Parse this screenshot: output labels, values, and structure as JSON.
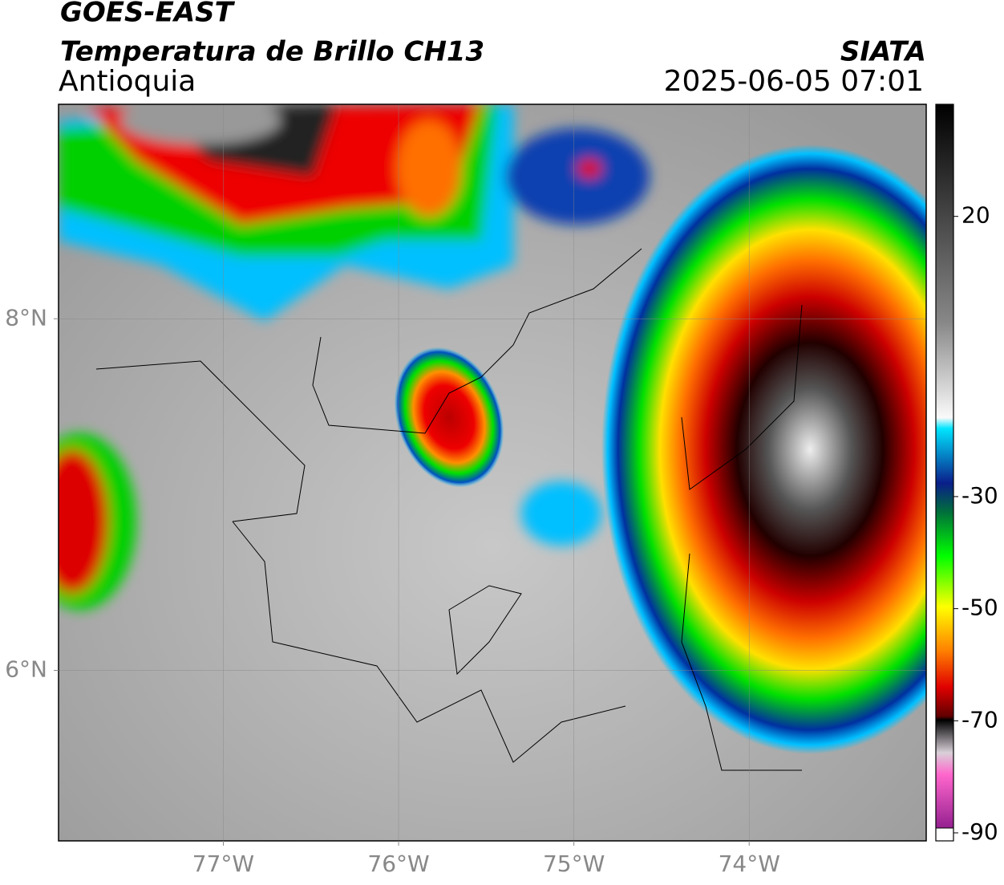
{
  "header": {
    "title": "GOES-EAST",
    "subtitle": "Temperatura de Brillo CH13",
    "region": "Antioquia",
    "source": "SIATA",
    "datetime": "2025-06-05 07:01"
  },
  "map": {
    "xlim": [
      -77.94,
      -72.99
    ],
    "ylim": [
      5.03,
      9.22
    ],
    "xticks": [
      {
        "value": -77,
        "label": "77°W"
      },
      {
        "value": -76,
        "label": "76°W"
      },
      {
        "value": -75,
        "label": "75°W"
      },
      {
        "value": -74,
        "label": "74°W"
      }
    ],
    "yticks": [
      {
        "value": 8,
        "label": "8°N"
      },
      {
        "value": 6,
        "label": "6°N"
      }
    ]
  },
  "colorbar": {
    "lim": [
      -90,
      40
    ],
    "ticks": [
      20,
      -30,
      -50,
      -70,
      -90
    ]
  }
}
